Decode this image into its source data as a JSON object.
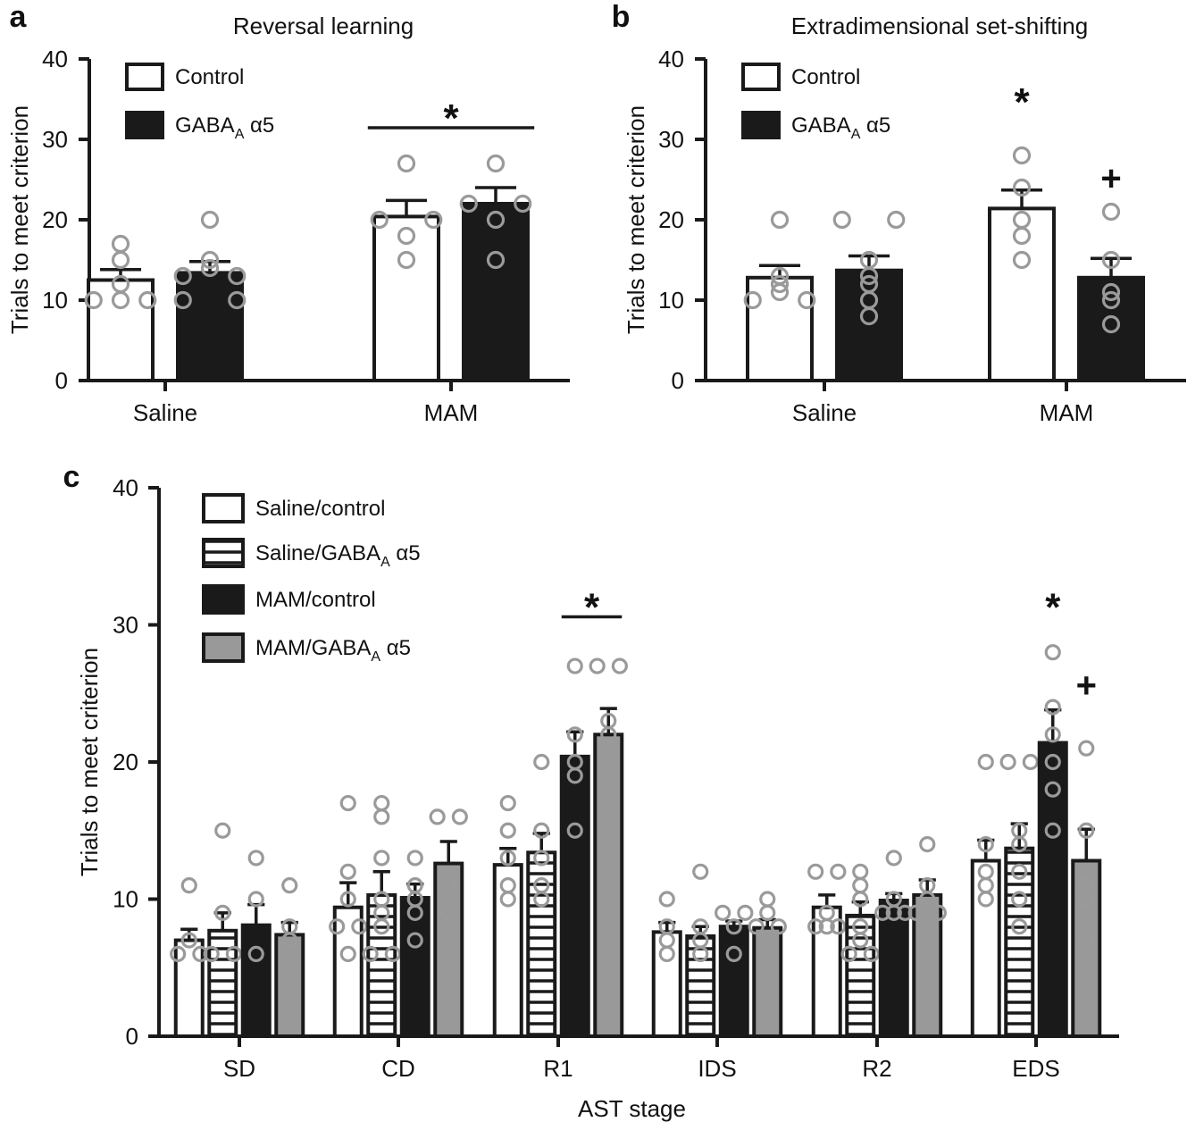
{
  "colors": {
    "black": "#1a1a1a",
    "gray": "#999999",
    "white": "#ffffff",
    "point": "#9a9a9a"
  },
  "chart_data": [
    {
      "panel": "a",
      "type": "bar",
      "title": "Reversal learning",
      "ylabel": "Trials to meet criterion",
      "xlabel": "",
      "ylim": [
        0,
        40
      ],
      "yticks": [
        "0",
        "10",
        "20",
        "30",
        "40"
      ],
      "categories": [
        "Saline",
        "MAM"
      ],
      "legend": [
        {
          "label": "Control",
          "fill": "white"
        },
        {
          "label": "GABA",
          "sub": "A",
          "suffix": " α5",
          "fill": "black"
        }
      ],
      "series": [
        {
          "name": "Control",
          "fill": "white",
          "values": [
            12.5,
            20.4
          ],
          "sem": [
            1.3,
            2.0
          ],
          "points": [
            [
              17,
              15,
              12,
              10,
              10,
              10
            ],
            [
              27,
              20,
              20,
              18,
              15
            ]
          ]
        },
        {
          "name": "GABA_A α5",
          "fill": "black",
          "values": [
            13.4,
            22.0
          ],
          "sem": [
            1.4,
            2.0
          ],
          "points": [
            [
              20,
              15,
              14,
              13,
              13,
              10,
              10
            ],
            [
              27,
              22,
              22,
              20,
              15
            ]
          ]
        }
      ],
      "annotations": [
        {
          "text": "*",
          "category": 1,
          "y": 33,
          "bracket": true
        }
      ]
    },
    {
      "panel": "b",
      "type": "bar",
      "title": "Extradimensional set-shifting",
      "ylabel": "Trials to meet criterion",
      "xlabel": "",
      "ylim": [
        0,
        40
      ],
      "yticks": [
        "0",
        "10",
        "20",
        "30",
        "40"
      ],
      "categories": [
        "Saline",
        "MAM"
      ],
      "legend": [
        {
          "label": "Control",
          "fill": "white"
        },
        {
          "label": "GABA",
          "sub": "A",
          "suffix": " α5",
          "fill": "black"
        }
      ],
      "series": [
        {
          "name": "Control",
          "fill": "white",
          "values": [
            12.8,
            21.4
          ],
          "sem": [
            1.5,
            2.3
          ],
          "points": [
            [
              20,
              13,
              12,
              11,
              10,
              10
            ],
            [
              28,
              24,
              20,
              18,
              15
            ]
          ]
        },
        {
          "name": "GABA_A α5",
          "fill": "black",
          "values": [
            13.7,
            12.8
          ],
          "sem": [
            1.8,
            2.4
          ],
          "points": [
            [
              20,
              20,
              15,
              13,
              12,
              10,
              8
            ],
            [
              21,
              15,
              11,
              10,
              7
            ]
          ]
        }
      ],
      "annotations": [
        {
          "text": "*",
          "series": 0,
          "category": 1,
          "y": 35
        },
        {
          "text": "+",
          "series": 1,
          "category": 1,
          "y": 25
        }
      ]
    },
    {
      "panel": "c",
      "type": "bar",
      "title": "",
      "ylabel": "Trials to meet criterion",
      "xlabel": "AST stage",
      "ylim": [
        0,
        40
      ],
      "yticks": [
        "0",
        "10",
        "20",
        "30",
        "40"
      ],
      "categories": [
        "SD",
        "CD",
        "R1",
        "IDS",
        "R2",
        "EDS"
      ],
      "legend": [
        {
          "label": "Saline/control",
          "fill": "white"
        },
        {
          "label": "Saline/GABA",
          "sub": "A",
          "suffix": " α5",
          "fill": "stripe"
        },
        {
          "label": "MAM/control",
          "fill": "black"
        },
        {
          "label": "MAM/GABA",
          "sub": "A",
          "suffix": " α5",
          "fill": "gray"
        }
      ],
      "series": [
        {
          "name": "Saline/control",
          "fill": "white",
          "values": [
            7.0,
            9.4,
            12.5,
            7.6,
            9.4,
            12.8
          ],
          "sem": [
            0.8,
            1.8,
            1.2,
            0.7,
            0.9,
            1.5
          ],
          "points": [
            [
              11,
              7,
              6,
              6
            ],
            [
              17,
              12,
              10,
              8,
              8,
              6
            ],
            [
              17,
              15,
              13,
              11,
              10
            ],
            [
              10,
              8,
              7,
              6
            ],
            [
              12,
              12,
              9,
              8,
              8,
              8
            ],
            [
              20,
              14,
              12,
              11,
              10
            ]
          ]
        },
        {
          "name": "Saline/GABA_A α5",
          "fill": "stripe",
          "values": [
            7.7,
            10.3,
            13.4,
            7.3,
            8.8,
            13.7
          ],
          "sem": [
            1.3,
            1.7,
            1.4,
            0.7,
            1.0,
            1.8
          ],
          "points": [
            [
              15,
              9,
              6,
              6
            ],
            [
              17,
              16,
              13,
              10,
              9,
              8,
              6,
              6
            ],
            [
              20,
              15,
              13,
              11,
              10
            ],
            [
              12,
              8,
              7,
              6
            ],
            [
              12,
              11,
              10,
              8,
              7,
              6,
              6
            ],
            [
              20,
              20,
              15,
              14,
              12,
              10,
              8
            ]
          ]
        },
        {
          "name": "MAM/control",
          "fill": "black",
          "values": [
            8.1,
            10.1,
            20.4,
            8.0,
            9.9,
            21.4
          ],
          "sem": [
            1.5,
            1.0,
            1.8,
            0.4,
            0.5,
            2.4
          ],
          "points": [
            [
              13,
              10,
              6
            ],
            [
              13,
              11,
              10,
              9,
              7
            ],
            [
              27,
              22,
              20,
              19,
              15
            ],
            [
              9,
              8,
              6,
              9
            ],
            [
              13,
              10,
              9,
              9,
              9
            ],
            [
              28,
              24,
              22,
              20,
              18,
              15
            ]
          ]
        },
        {
          "name": "MAM/GABA_A α5",
          "fill": "gray",
          "values": [
            7.4,
            12.6,
            22.0,
            7.9,
            10.3,
            12.8
          ],
          "sem": [
            0.9,
            1.6,
            1.9,
            0.6,
            1.1,
            2.3
          ],
          "points": [
            [
              11,
              8,
              7
            ],
            [
              16,
              16,
              11,
              9,
              8
            ],
            [
              27,
              27,
              22,
              20,
              23
            ],
            [
              10,
              9,
              8,
              8
            ],
            [
              14,
              11,
              10,
              9,
              9
            ],
            [
              21,
              15,
              11,
              10,
              7
            ]
          ]
        }
      ],
      "annotations": [
        {
          "text": "*",
          "category": 2,
          "y": 31.5,
          "bracket": true
        },
        {
          "text": "*",
          "series": 2,
          "category": 5,
          "y": 31.5
        },
        {
          "text": "+",
          "series": 3,
          "category": 5,
          "y": 25.5
        }
      ]
    }
  ]
}
